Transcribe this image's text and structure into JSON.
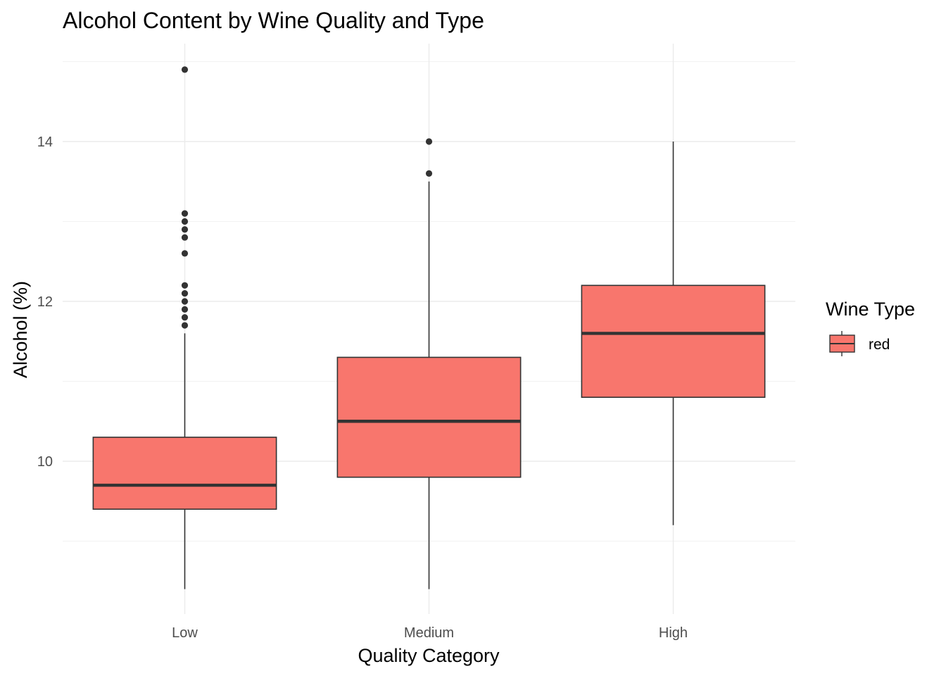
{
  "chart_data": {
    "type": "boxplot",
    "title": "Alcohol Content by Wine Quality and Type",
    "xlabel": "Quality Category",
    "ylabel": "Alcohol (%)",
    "categories": [
      "Low",
      "Medium",
      "High"
    ],
    "ylim": [
      8.2,
      15.1
    ],
    "y_ticks": [
      10,
      12,
      14
    ],
    "grid": true,
    "legend": {
      "title": "Wine Type",
      "placement": "right",
      "entries": [
        "red"
      ]
    },
    "series": [
      {
        "name": "red",
        "color": "#F8766D",
        "boxes": [
          {
            "category": "Low",
            "whisker_low": 8.4,
            "q1": 9.4,
            "median": 9.7,
            "q3": 10.3,
            "whisker_high": 11.6,
            "outliers": [
              11.7,
              11.8,
              11.9,
              12.0,
              12.1,
              12.2,
              12.6,
              12.8,
              12.9,
              13.0,
              13.1,
              14.9
            ]
          },
          {
            "category": "Medium",
            "whisker_low": 8.4,
            "q1": 9.8,
            "median": 10.5,
            "q3": 11.3,
            "whisker_high": 13.5,
            "outliers": [
              13.6,
              14.0
            ]
          },
          {
            "category": "High",
            "whisker_low": 9.2,
            "q1": 10.8,
            "median": 11.6,
            "q3": 12.2,
            "whisker_high": 14.0,
            "outliers": []
          }
        ]
      }
    ]
  }
}
